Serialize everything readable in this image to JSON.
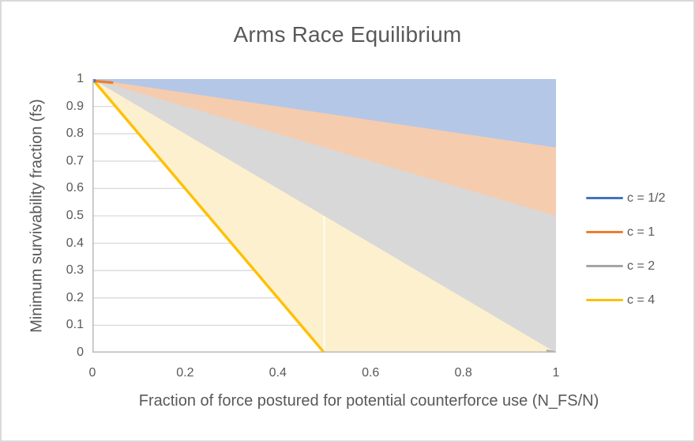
{
  "window": {
    "background": "#ffffff",
    "frame_border_color": "#d9d9d9"
  },
  "chart_data": {
    "type": "area",
    "title": "Arms Race Equilibrium",
    "xlabel": "Fraction of force postured for potential counterforce use (N_FS/N)",
    "ylabel": "Minimum survivability fraction (fs)",
    "xlim": [
      0,
      1
    ],
    "ylim": [
      0,
      1
    ],
    "grid": "horizontal",
    "grid_color": "#d9d9d9",
    "axis_color": "#bfbfbf",
    "text_color": "#595959",
    "legend_position": "right",
    "x_ticks": [
      "0",
      "0.2",
      "0.4",
      "0.6",
      "0.8",
      "1"
    ],
    "x_tick_values": [
      0,
      0.2,
      0.4,
      0.6,
      0.8,
      1
    ],
    "y_ticks": [
      "1",
      "0.9",
      "0.8",
      "0.7",
      "0.6",
      "0.5",
      "0.4",
      "0.3",
      "0.2",
      "0.1",
      "0"
    ],
    "y_tick_values": [
      1,
      0.9,
      0.8,
      0.7,
      0.6,
      0.5,
      0.4,
      0.3,
      0.2,
      0.1,
      0
    ],
    "grid_values": [
      0.1,
      0.2,
      0.3,
      0.4,
      0.5,
      0.6,
      0.7,
      0.8,
      0.9,
      1
    ],
    "series": [
      {
        "name": "c = 1/2",
        "line_color": "#4472C4",
        "fill_color": "#B4C7E7",
        "line_points": [
          [
            0,
            1
          ],
          [
            1,
            0.75
          ]
        ],
        "area_points": [
          [
            0,
            1
          ],
          [
            1,
            1
          ],
          [
            1,
            0.75
          ]
        ],
        "line_visible": false
      },
      {
        "name": "c = 1",
        "line_color": "#ED7D31",
        "fill_color": "#F6CCAE",
        "line_points": [
          [
            0,
            1
          ],
          [
            1,
            0.5
          ]
        ],
        "area_points": [
          [
            0,
            1
          ],
          [
            1,
            1
          ],
          [
            1,
            0.5
          ]
        ],
        "line_visible": false
      },
      {
        "name": "c = 2",
        "line_color": "#A5A5A5",
        "fill_color": "#D8D8D8",
        "line_points": [
          [
            0,
            1
          ],
          [
            1,
            0
          ]
        ],
        "area_points": [
          [
            0,
            1
          ],
          [
            1,
            1
          ],
          [
            1,
            0
          ]
        ],
        "line_visible": false
      },
      {
        "name": "c = 4",
        "line_color": "#FFC000",
        "fill_color": "#FCF0CE",
        "line_points": [
          [
            0,
            1
          ],
          [
            0.5,
            0
          ]
        ],
        "area_points": [
          [
            0,
            1
          ],
          [
            1,
            1
          ],
          [
            1,
            0
          ],
          [
            0.5,
            0
          ]
        ],
        "line_visible": true
      }
    ],
    "artifacts": {
      "white_seam": {
        "x": 0.5,
        "y_from": 0,
        "y_to": 0.5,
        "color": "#ffffff"
      },
      "origin_dot_color": "#4472C4",
      "origin_stub_color": "#ED7D31",
      "corner_nub_color": "#A5A5A5"
    }
  }
}
